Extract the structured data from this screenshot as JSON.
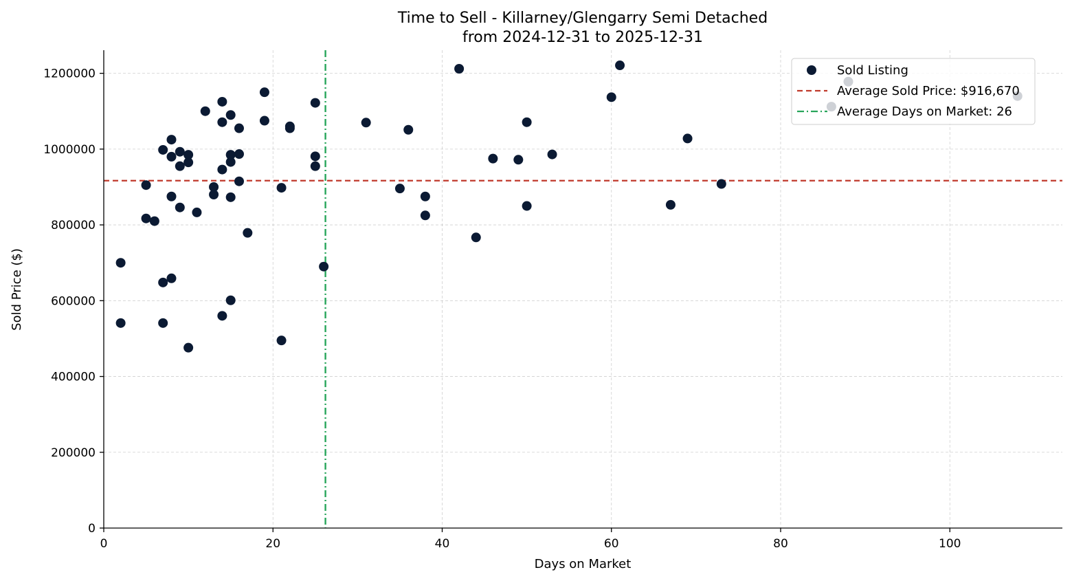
{
  "chart_data": {
    "type": "scatter",
    "title_line1": "Time to Sell - Killarney/Glengarry Semi Detached",
    "title_line2": "from 2024-12-31 to 2025-12-31",
    "xlabel": "Days on Market",
    "ylabel": "Sold Price ($)",
    "xlim": [
      0,
      113.3
    ],
    "ylim": [
      0,
      1261000
    ],
    "xticks": [
      0,
      20,
      40,
      60,
      80,
      100
    ],
    "xtick_labels": [
      "0",
      "20",
      "40",
      "60",
      "80",
      "100"
    ],
    "yticks": [
      0,
      200000,
      400000,
      600000,
      800000,
      1000000,
      1200000
    ],
    "ytick_labels": [
      "0",
      "200000",
      "400000",
      "600000",
      "800000",
      "1000000",
      "1200000"
    ],
    "grid": true,
    "legend_position": "top-right",
    "series": [
      {
        "name": "Sold Listing",
        "color": "#0b1a33",
        "points": [
          [
            2,
            700000
          ],
          [
            2,
            541000
          ],
          [
            5,
            905000
          ],
          [
            5,
            817000
          ],
          [
            6,
            810000
          ],
          [
            7,
            998000
          ],
          [
            7,
            648000
          ],
          [
            7,
            541000
          ],
          [
            8,
            1025000
          ],
          [
            8,
            980000
          ],
          [
            8,
            875000
          ],
          [
            8,
            659000
          ],
          [
            9,
            993000
          ],
          [
            9,
            955000
          ],
          [
            9,
            846000
          ],
          [
            10,
            985000
          ],
          [
            10,
            965000
          ],
          [
            10,
            476000
          ],
          [
            11,
            833000
          ],
          [
            12,
            1100000
          ],
          [
            13,
            900000
          ],
          [
            13,
            880000
          ],
          [
            14,
            1125000
          ],
          [
            14,
            1071000
          ],
          [
            14,
            946000
          ],
          [
            14,
            560000
          ],
          [
            15,
            1090000
          ],
          [
            15,
            985000
          ],
          [
            15,
            966000
          ],
          [
            15,
            873000
          ],
          [
            15,
            601000
          ],
          [
            16,
            1055000
          ],
          [
            16,
            987000
          ],
          [
            16,
            915000
          ],
          [
            17,
            779000
          ],
          [
            19,
            1150000
          ],
          [
            19,
            1075000
          ],
          [
            21,
            898000
          ],
          [
            21,
            495000
          ],
          [
            22,
            1060000
          ],
          [
            22,
            1055000
          ],
          [
            25,
            1122000
          ],
          [
            25,
            981000
          ],
          [
            25,
            955000
          ],
          [
            26,
            690000
          ],
          [
            31,
            1070000
          ],
          [
            35,
            896000
          ],
          [
            36,
            1051000
          ],
          [
            38,
            875000
          ],
          [
            38,
            825000
          ],
          [
            42,
            1212000
          ],
          [
            44,
            767000
          ],
          [
            46,
            975000
          ],
          [
            49,
            972000
          ],
          [
            50,
            1071000
          ],
          [
            50,
            850000
          ],
          [
            53,
            986000
          ],
          [
            60,
            1137000
          ],
          [
            61,
            1221000
          ],
          [
            67,
            853000
          ],
          [
            69,
            1028000
          ],
          [
            73,
            908000
          ],
          [
            86,
            1112000
          ],
          [
            88,
            1178000
          ],
          [
            108,
            1140000
          ]
        ]
      }
    ],
    "reference_lines": [
      {
        "name": "Average Sold Price: $916,670",
        "orientation": "horizontal",
        "value": 916670,
        "color": "#c0392b",
        "style": "dashed"
      },
      {
        "name": "Average Days on Market: 26",
        "orientation": "vertical",
        "value": 26.2,
        "color": "#27a55a",
        "style": "dashdot"
      }
    ],
    "legend": [
      {
        "label": "Sold Listing",
        "kind": "marker"
      },
      {
        "label": "Average Sold Price: $916,670",
        "kind": "dashed"
      },
      {
        "label": "Average Days on Market: 26",
        "kind": "dashdot"
      }
    ]
  }
}
